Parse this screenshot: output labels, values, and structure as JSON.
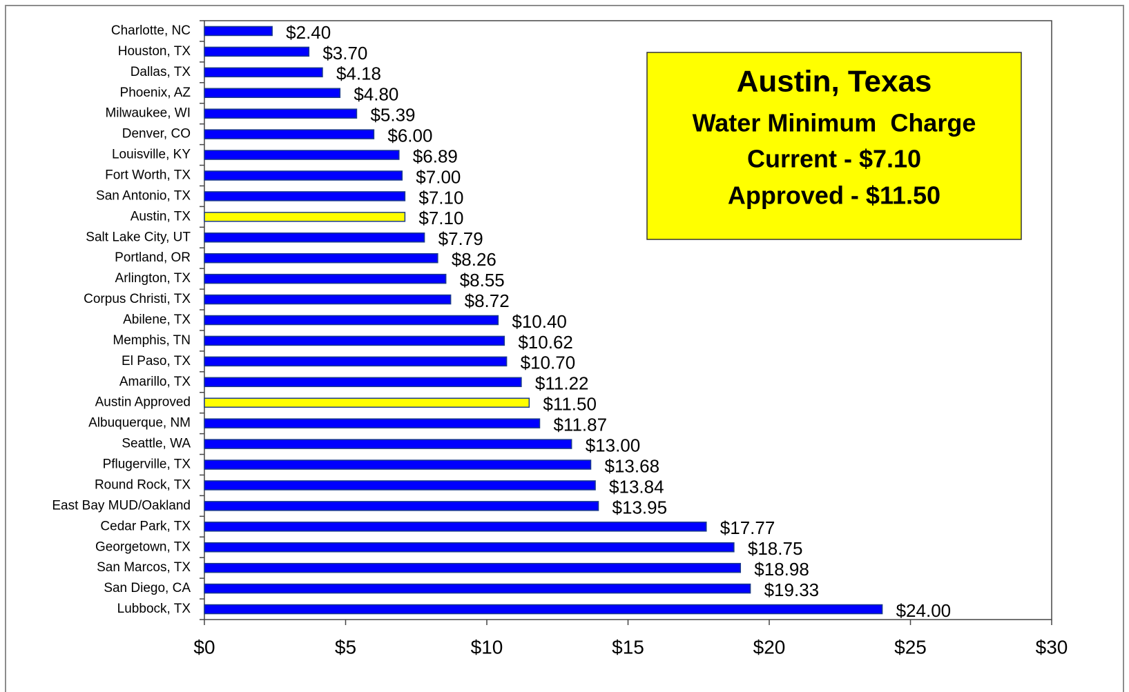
{
  "chart_data": {
    "type": "bar",
    "orientation": "horizontal",
    "categories": [
      "Charlotte, NC",
      "Houston, TX",
      "Dallas, TX",
      "Phoenix, AZ",
      "Milwaukee, WI",
      "Denver, CO",
      "Louisville, KY",
      "Fort Worth, TX",
      "San Antonio, TX",
      "Austin, TX",
      "Salt Lake City, UT",
      "Portland, OR",
      "Arlington, TX",
      "Corpus Christi, TX",
      "Abilene, TX",
      "Memphis, TN",
      "El Paso, TX",
      "Amarillo, TX",
      "Austin Approved",
      "Albuquerque, NM",
      "Seattle, WA",
      "Pflugerville, TX",
      "Round Rock, TX",
      "East Bay MUD/Oakland",
      "Cedar Park, TX",
      "Georgetown, TX",
      "San Marcos, TX",
      "San Diego, CA",
      "Lubbock, TX"
    ],
    "values": [
      2.4,
      3.7,
      4.18,
      4.8,
      5.39,
      6.0,
      6.89,
      7.0,
      7.1,
      7.1,
      7.79,
      8.26,
      8.55,
      8.72,
      10.4,
      10.62,
      10.7,
      11.22,
      11.5,
      11.87,
      13.0,
      13.68,
      13.84,
      13.95,
      17.77,
      18.75,
      18.98,
      19.33,
      24.0
    ],
    "value_labels": [
      "$2.40",
      "$3.70",
      "$4.18",
      "$4.80",
      "$5.39",
      "$6.00",
      "$6.89",
      "$7.00",
      "$7.10",
      "$7.10",
      "$7.79",
      "$8.26",
      "$8.55",
      "$8.72",
      "$10.40",
      "$10.62",
      "$10.70",
      "$11.22",
      "$11.50",
      "$11.87",
      "$13.00",
      "$13.68",
      "$13.84",
      "$13.95",
      "$17.77",
      "$18.75",
      "$18.98",
      "$19.33",
      "$24.00"
    ],
    "colors": [
      "#0000ff",
      "#0000ff",
      "#0000ff",
      "#0000ff",
      "#0000ff",
      "#0000ff",
      "#0000ff",
      "#0000ff",
      "#0000ff",
      "#ffff00",
      "#0000ff",
      "#0000ff",
      "#0000ff",
      "#0000ff",
      "#0000ff",
      "#0000ff",
      "#0000ff",
      "#0000ff",
      "#ffff00",
      "#0000ff",
      "#0000ff",
      "#0000ff",
      "#0000ff",
      "#0000ff",
      "#0000ff",
      "#0000ff",
      "#0000ff",
      "#0000ff",
      "#0000ff"
    ],
    "xlim": [
      0,
      30
    ],
    "xticks": [
      {
        "value": 0,
        "label": "$0"
      },
      {
        "value": 5,
        "label": "$5"
      },
      {
        "value": 10,
        "label": "$10"
      },
      {
        "value": 15,
        "label": "$15"
      },
      {
        "value": 20,
        "label": "$20"
      },
      {
        "value": 25,
        "label": "$25"
      },
      {
        "value": 30,
        "label": "$30"
      }
    ],
    "grid": false,
    "annotation": {
      "lines": [
        "Austin, Texas",
        "Water Minimum  Charge",
        "Current - $7.10",
        "Approved - $11.50"
      ],
      "color": "#ffff00"
    }
  }
}
